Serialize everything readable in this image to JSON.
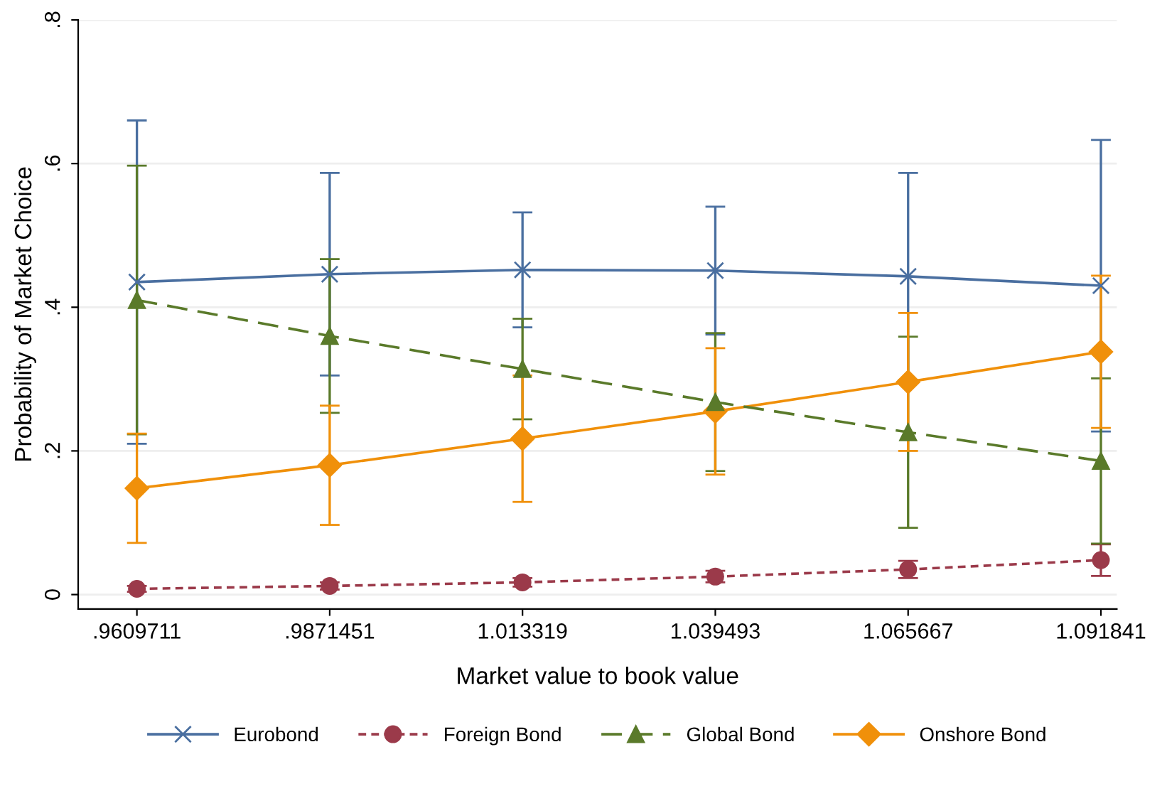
{
  "chart_data": {
    "type": "line",
    "xlabel": "Market value to book value",
    "ylabel": "Probability of Market Choice",
    "x": [
      0.9609711,
      0.9871451,
      1.013319,
      1.039493,
      1.065667,
      1.091841
    ],
    "xlim": [
      0.953,
      1.094
    ],
    "xticks": [
      {
        "value": 0.9609711,
        "label": ".9609711"
      },
      {
        "value": 0.9871451,
        "label": ".9871451"
      },
      {
        "value": 1.013319,
        "label": "1.013319"
      },
      {
        "value": 1.039493,
        "label": "1.039493"
      },
      {
        "value": 1.065667,
        "label": "1.065667"
      },
      {
        "value": 1.091841,
        "label": "1.091841"
      }
    ],
    "ylim": [
      -0.02,
      0.8
    ],
    "yticks": [
      {
        "value": 0,
        "label": "0"
      },
      {
        "value": 0.2,
        "label": ".2"
      },
      {
        "value": 0.4,
        "label": ".4"
      },
      {
        "value": 0.6,
        "label": ".6"
      },
      {
        "value": 0.8,
        "label": ".8"
      }
    ],
    "grid": "y",
    "legend": "bottom",
    "series": [
      {
        "name": "Eurobond",
        "color": "#4a6fa0",
        "marker": "cross",
        "line_style": "solid",
        "values": [
          0.435,
          0.446,
          0.452,
          0.451,
          0.443,
          0.43
        ],
        "errors": [
          0.225,
          0.141,
          0.08,
          0.089,
          0.144,
          0.203
        ]
      },
      {
        "name": "Foreign Bond",
        "color": "#9b3a4a",
        "marker": "circle",
        "line_style": "dotted",
        "values": [
          0.008,
          0.012,
          0.017,
          0.025,
          0.035,
          0.048
        ],
        "errors": [
          0.004,
          0.005,
          0.006,
          0.008,
          0.012,
          0.022
        ]
      },
      {
        "name": "Global Bond",
        "color": "#5a7a2a",
        "marker": "triangle",
        "line_style": "dashed",
        "values": [
          0.41,
          0.36,
          0.314,
          0.268,
          0.226,
          0.186
        ],
        "errors": [
          0.187,
          0.107,
          0.07,
          0.096,
          0.133,
          0.115
        ]
      },
      {
        "name": "Onshore Bond",
        "color": "#f0900a",
        "marker": "diamond",
        "line_style": "solid",
        "values": [
          0.148,
          0.18,
          0.217,
          0.255,
          0.296,
          0.338
        ],
        "errors": [
          0.076,
          0.083,
          0.088,
          0.088,
          0.096,
          0.106
        ]
      }
    ]
  }
}
